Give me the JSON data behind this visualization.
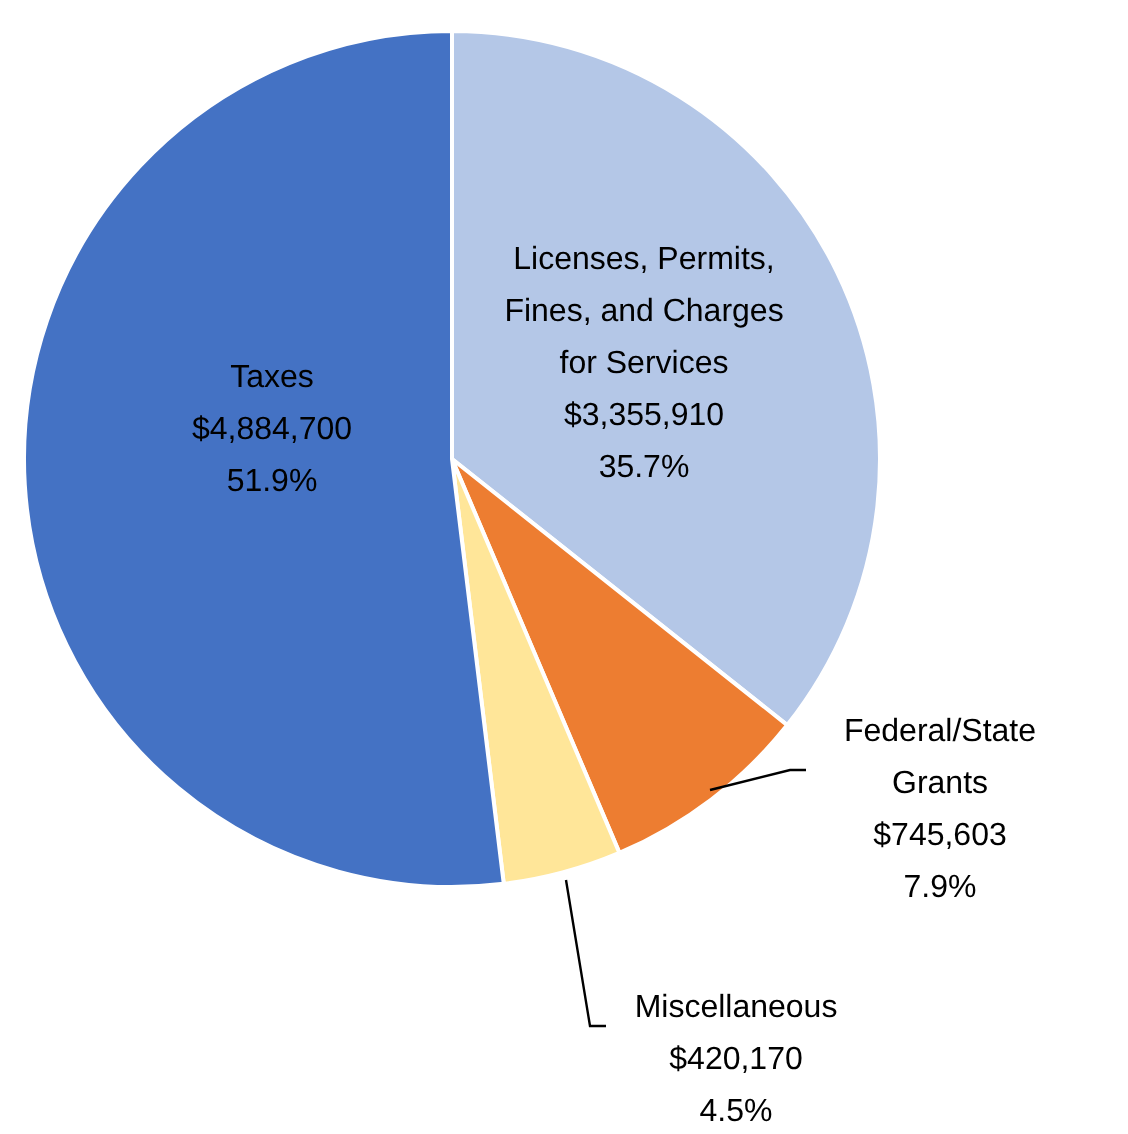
{
  "chart_data": {
    "type": "pie",
    "categories": [
      "Licenses, Permits, Fines, and Charges for Services",
      "Federal/State Grants",
      "Miscellaneous",
      "Taxes"
    ],
    "values": [
      3355910,
      745603,
      420170,
      4884700
    ],
    "colors": [
      "#b4c7e7",
      "#ed7d31",
      "#ffe699",
      "#4472c4"
    ],
    "value_labels": [
      "$3,355,910\n35.7%",
      "$745,603\n7.9%",
      "$420,170\n4.5%",
      "$4,884,700\n51.9%"
    ],
    "legend": false
  }
}
